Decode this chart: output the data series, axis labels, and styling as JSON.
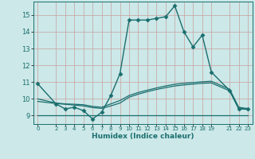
{
  "xlabel": "Humidex (Indice chaleur)",
  "bg_color": "#cce8e8",
  "grid_color_v": "#c8a0a0",
  "grid_color_h": "#c8a0a0",
  "line_color": "#1a6e6e",
  "xlim": [
    -0.5,
    23.5
  ],
  "ylim": [
    8.5,
    15.8
  ],
  "yticks": [
    9,
    10,
    11,
    12,
    13,
    14,
    15
  ],
  "xticks": [
    0,
    2,
    3,
    4,
    5,
    6,
    7,
    8,
    9,
    10,
    11,
    12,
    13,
    14,
    15,
    16,
    17,
    18,
    19,
    21,
    22,
    23
  ],
  "lines": [
    {
      "x": [
        0,
        2,
        3,
        4,
        5,
        6,
        7,
        8,
        9,
        10,
        11,
        12,
        13,
        14,
        15,
        16,
        17,
        18,
        19,
        21,
        22,
        23
      ],
      "y": [
        10.9,
        9.7,
        9.4,
        9.5,
        9.3,
        8.8,
        9.2,
        10.2,
        11.5,
        14.7,
        14.7,
        14.7,
        14.8,
        14.9,
        15.55,
        14.0,
        13.1,
        13.8,
        11.6,
        10.5,
        9.4,
        9.4
      ],
      "marker": "D",
      "markersize": 2.5,
      "linewidth": 1.0
    },
    {
      "x": [
        0,
        2,
        3,
        4,
        5,
        6,
        7,
        8,
        9,
        10,
        11,
        12,
        13,
        14,
        15,
        16,
        17,
        18,
        19,
        21,
        22,
        23
      ],
      "y": [
        10.0,
        9.75,
        9.7,
        9.68,
        9.65,
        9.55,
        9.5,
        9.7,
        9.9,
        10.2,
        10.38,
        10.52,
        10.65,
        10.77,
        10.87,
        10.93,
        10.97,
        11.02,
        11.05,
        10.58,
        9.5,
        9.42
      ],
      "marker": null,
      "markersize": 0,
      "linewidth": 0.9
    },
    {
      "x": [
        0,
        2,
        3,
        4,
        5,
        6,
        7,
        8,
        9,
        10,
        11,
        12,
        13,
        14,
        15,
        16,
        17,
        18,
        19,
        21,
        22,
        23
      ],
      "y": [
        9.85,
        9.72,
        9.68,
        9.63,
        9.58,
        9.48,
        9.43,
        9.58,
        9.75,
        10.1,
        10.28,
        10.43,
        10.56,
        10.67,
        10.77,
        10.83,
        10.88,
        10.93,
        10.95,
        10.48,
        9.43,
        9.36
      ],
      "marker": null,
      "markersize": 0,
      "linewidth": 0.9
    },
    {
      "x": [
        0,
        23
      ],
      "y": [
        9.0,
        9.0
      ],
      "marker": null,
      "markersize": 0,
      "linewidth": 0.9
    }
  ]
}
